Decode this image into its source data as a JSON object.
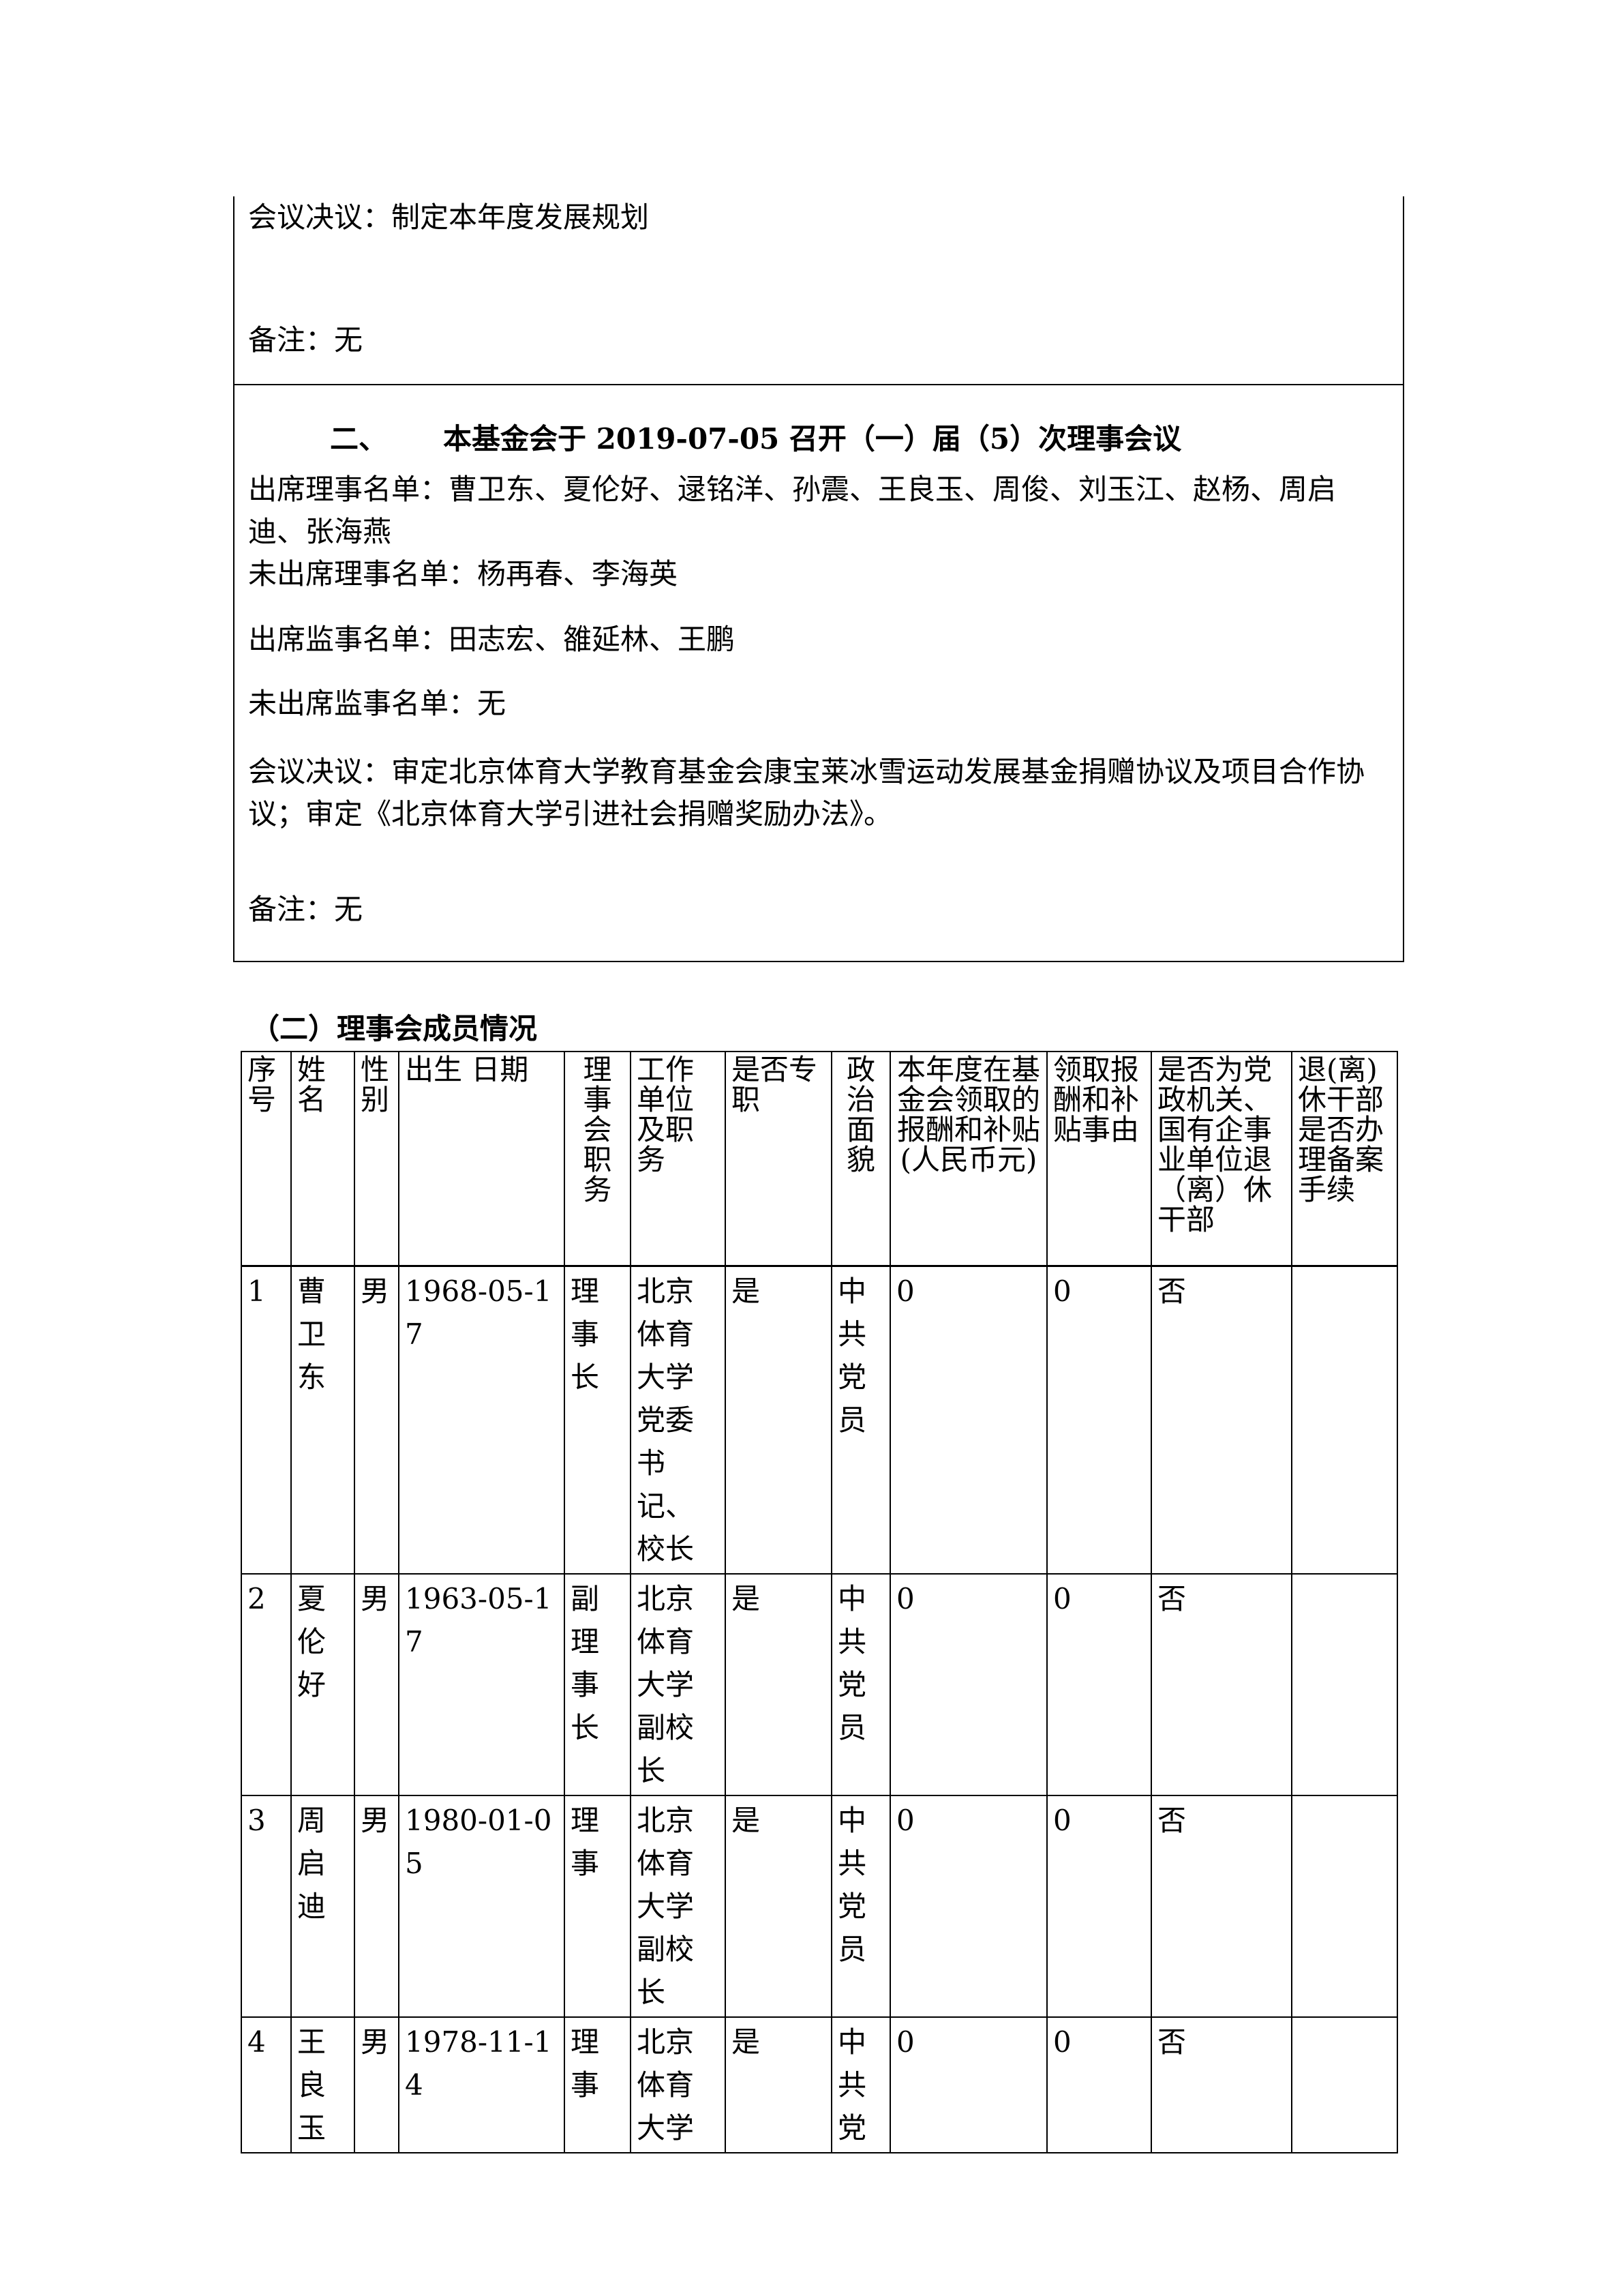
{
  "meeting1": {
    "resolution": "会议决议：制定本年度发展规划",
    "remark": "备注：无"
  },
  "meeting2": {
    "title_index": "二、",
    "title": "本基金会于 2019-07-05 召开（一）届（5）次理事会议",
    "directors_present": "出席理事名单：曹卫东、夏伦好、逯铭洋、孙震、王良玉、周俊、刘玉江、赵杨、周启迪、张海燕",
    "directors_absent": "未出席理事名单：杨再春、李海英",
    "supervisors_present": "出席监事名单：田志宏、雒延林、王鹏",
    "supervisors_absent": "未出席监事名单：无",
    "resolution": "会议决议：审定北京体育大学教育基金会康宝莱冰雪运动发展基金捐赠协议及项目合作协议；审定《北京体育大学引进社会捐赠奖励办法》。",
    "remark": "备注：无"
  },
  "section_title": "（二）理事会成员情况",
  "table": {
    "headers": [
      "序号",
      "姓名",
      "性别",
      "出生 日期",
      "理事会职务",
      "工作单位及职务",
      "是否专职",
      "政治面貌",
      "本年度在基金会领取的报酬和补贴(人民币元)",
      "领取报酬和补贴事由",
      "是否为党政机关、国有企事业单位退（离）休干部",
      "退(离)休干部是否办理备案手续"
    ],
    "rows": [
      [
        "1",
        "曹卫东",
        "男",
        "1968-05-17",
        "理事长",
        "北京体育大学党委书记、校长",
        "是",
        "中共党员",
        "0",
        "0",
        "否",
        ""
      ],
      [
        "2",
        "夏伦好",
        "男",
        "1963-05-17",
        "副理事长",
        "北京体育大学副校长",
        "是",
        "中共党员",
        "0",
        "0",
        "否",
        ""
      ],
      [
        "3",
        "周启迪",
        "男",
        "1980-01-05",
        "理事",
        "北京体育大学副校长",
        "是",
        "中共党员",
        "0",
        "0",
        "否",
        ""
      ],
      [
        "4",
        "王良玉",
        "男",
        "1978-11-14",
        "理事",
        "北京体育大学",
        "是",
        "中共党",
        "0",
        "0",
        "否",
        ""
      ]
    ]
  }
}
